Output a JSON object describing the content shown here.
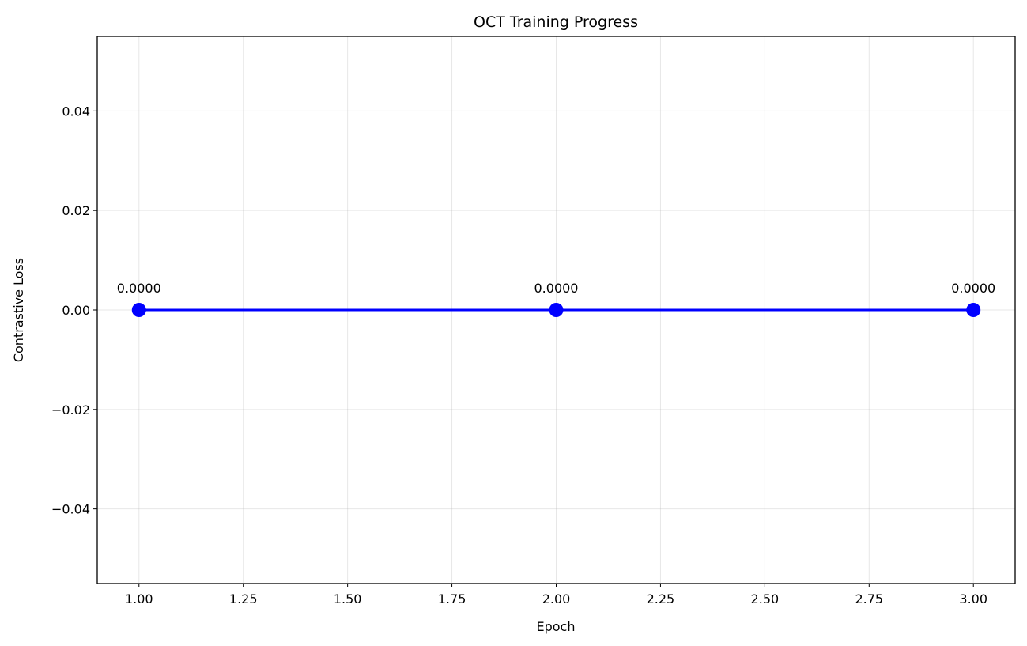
{
  "chart_data": {
    "type": "line",
    "title": "OCT Training Progress",
    "xlabel": "Epoch",
    "ylabel": "Contrastive Loss",
    "xlim": [
      0.9,
      3.1
    ],
    "ylim": [
      -0.055,
      0.055
    ],
    "x_ticks": [
      1.0,
      1.25,
      1.5,
      1.75,
      2.0,
      2.25,
      2.5,
      2.75,
      3.0
    ],
    "x_tick_labels": [
      "1.00",
      "1.25",
      "1.50",
      "1.75",
      "2.00",
      "2.25",
      "2.50",
      "2.75",
      "3.00"
    ],
    "y_ticks": [
      -0.04,
      -0.02,
      0.0,
      0.02,
      0.04
    ],
    "y_tick_labels": [
      "−0.04",
      "−0.02",
      "0.00",
      "0.02",
      "0.04"
    ],
    "grid": true,
    "series": [
      {
        "color": "#0000ff",
        "marker": "circle",
        "x": [
          1,
          2,
          3
        ],
        "y": [
          0.0,
          0.0,
          0.0
        ],
        "data_labels": [
          "0.0000",
          "0.0000",
          "0.0000"
        ]
      }
    ]
  }
}
